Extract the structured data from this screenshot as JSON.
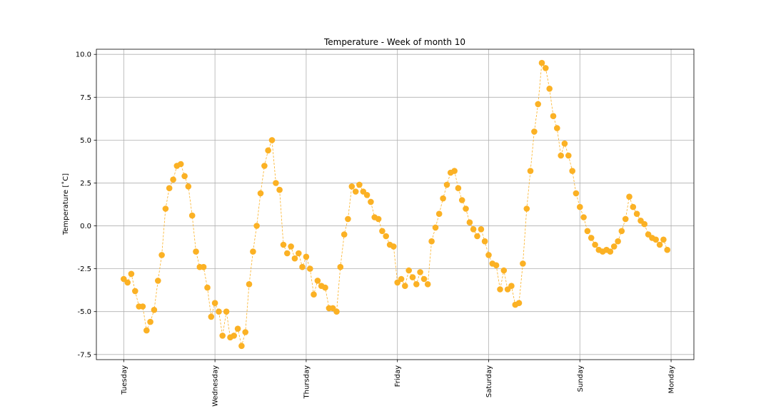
{
  "chart_data": {
    "type": "line",
    "title": "Temperature - Week of month 10",
    "xlabel": "",
    "ylabel": "Temperature [$^{\\circ}$C]",
    "ylabel_display": "Temperature [˚C]",
    "x_ticks": [
      "Tuesday",
      "Wednesday",
      "Thursday",
      "Friday",
      "Saturday",
      "Sunday",
      "Monday"
    ],
    "y_ticks": [
      "-7.5",
      "-5.0",
      "-2.5",
      "0.0",
      "2.5",
      "5.0",
      "7.5",
      "10.0"
    ],
    "ylim": [
      -7.8,
      10.3
    ],
    "xlim_days": [
      -0.3,
      6.25
    ],
    "grid": true,
    "line_style": "dashed",
    "marker": "circle",
    "color": "#fbb124",
    "series": [
      {
        "x_days": [
          0,
          0.042,
          0.083,
          0.125,
          0.167,
          0.208,
          0.25,
          0.292,
          0.333,
          0.375,
          0.417,
          0.458,
          0.5,
          0.542,
          0.583,
          0.625,
          0.667,
          0.708,
          0.75,
          0.792,
          0.833,
          0.875,
          0.917,
          0.958,
          1.0,
          1.042,
          1.083,
          1.125,
          1.167,
          1.208,
          1.25,
          1.292,
          1.333,
          1.375,
          1.417,
          1.458,
          1.5,
          1.542,
          1.583,
          1.625,
          1.667,
          1.708,
          1.75,
          1.792,
          1.833,
          1.875,
          1.917,
          1.958,
          2.0,
          2.042,
          2.083,
          2.125,
          2.167,
          2.208,
          2.25,
          2.292,
          2.333,
          2.375,
          2.417,
          2.458,
          2.5,
          2.542,
          2.583,
          2.625,
          2.667,
          2.708,
          2.75,
          2.792,
          2.833,
          2.875,
          2.917,
          2.958,
          3.0,
          3.042,
          3.083,
          3.125,
          3.167,
          3.208,
          3.25,
          3.292,
          3.333,
          3.375,
          3.417,
          3.458,
          3.5,
          3.542,
          3.583,
          3.625,
          3.667,
          3.708,
          3.75,
          3.792,
          3.833,
          3.875,
          3.917,
          3.958,
          4.0,
          4.042,
          4.083,
          4.125,
          4.167,
          4.208,
          4.25,
          4.292,
          4.333,
          4.375,
          4.417,
          4.458,
          4.5,
          4.542,
          4.583,
          4.625,
          4.667,
          4.708,
          4.75,
          4.792,
          4.833,
          4.875,
          4.917,
          4.958,
          5.0,
          5.042,
          5.083,
          5.125,
          5.167,
          5.208,
          5.25,
          5.292,
          5.333,
          5.375,
          5.417,
          5.458,
          5.5,
          5.542,
          5.583,
          5.625,
          5.667,
          5.708,
          5.75,
          5.792,
          5.833,
          5.875,
          5.917,
          5.958
        ],
        "values": [
          -3.1,
          -3.3,
          -2.8,
          -3.8,
          -4.7,
          -4.7,
          -6.1,
          -5.6,
          -4.9,
          -3.2,
          -1.7,
          1.0,
          2.2,
          2.7,
          3.5,
          3.6,
          2.9,
          2.3,
          0.6,
          -1.5,
          -2.4,
          -2.4,
          -3.6,
          -5.3,
          -4.5,
          -5.0,
          -6.4,
          -5.0,
          -6.5,
          -6.4,
          -6.0,
          -7.0,
          -6.2,
          -3.4,
          -1.5,
          0.0,
          1.9,
          3.5,
          4.4,
          5.0,
          2.5,
          2.1,
          -1.1,
          -1.6,
          -1.2,
          -1.9,
          -1.6,
          -2.4,
          -1.8,
          -2.5,
          -4.0,
          -3.2,
          -3.5,
          -3.6,
          -4.8,
          -4.8,
          -5.0,
          -2.4,
          -0.5,
          0.4,
          2.3,
          2.0,
          2.4,
          2.0,
          1.8,
          1.4,
          0.5,
          0.4,
          -0.3,
          -0.6,
          -1.1,
          -1.2,
          -3.3,
          -3.1,
          -3.5,
          -2.6,
          -3.0,
          -3.4,
          -2.7,
          -3.1,
          -3.4,
          -0.9,
          -0.1,
          0.7,
          1.6,
          2.4,
          3.1,
          3.2,
          2.2,
          1.5,
          1.0,
          0.2,
          -0.2,
          -0.6,
          -0.2,
          -0.9,
          -1.7,
          -2.2,
          -2.3,
          -3.7,
          -2.6,
          -3.7,
          -3.5,
          -4.6,
          -4.5,
          -2.2,
          1.0,
          3.2,
          5.5,
          7.1,
          9.5,
          9.2,
          8.0,
          6.4,
          5.7,
          4.1,
          4.8,
          4.1,
          3.2,
          1.9,
          1.1,
          0.5,
          -0.3,
          -0.7,
          -1.1,
          -1.4,
          -1.5,
          -1.4,
          -1.5,
          -1.2,
          -0.9,
          -0.3,
          0.4,
          1.7,
          1.1,
          0.7,
          0.3,
          0.1,
          -0.5,
          -0.7,
          -0.8,
          -1.1,
          -0.8,
          -1.4
        ]
      }
    ]
  }
}
